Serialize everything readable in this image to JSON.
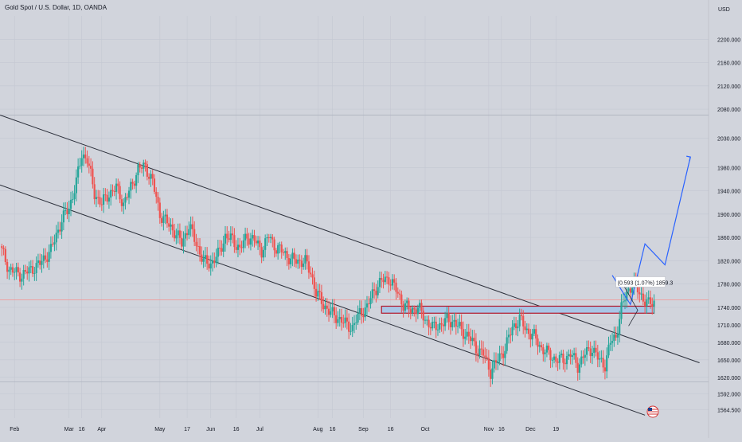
{
  "header": {
    "title": "Gold Spot / U.S. Dollar, 1D, OANDA"
  },
  "colors": {
    "background": "#d1d4dc",
    "up": "#26a69a",
    "down": "#ef5350",
    "channel": "#2a2e39",
    "projection": "#2962ff",
    "zone_fill": "#a9c6e6",
    "zone_border": "#b2182b",
    "level_line": "#ef9a9a"
  },
  "chart_data": {
    "type": "candlestick",
    "title": "Gold Spot / U.S. Dollar, 1D, OANDA",
    "currency": "USD",
    "ylim": [
      1550,
      2240
    ],
    "y_ticks": [
      "2200.000",
      "2160.000",
      "2120.000",
      "2080.000",
      "2030.000",
      "1980.000",
      "1940.000",
      "1900.000",
      "1860.000",
      "1820.000",
      "1780.000",
      "1740.000",
      "1710.000",
      "1680.000",
      "1650.000",
      "1620.000",
      "1592.000",
      "1564.500"
    ],
    "x_ticks": [
      "Feb",
      "Mar",
      "16",
      "Apr",
      "May",
      "17",
      "Jun",
      "16",
      "Jul",
      "Aug",
      "16",
      "Sep",
      "16",
      "Oct",
      "Nov",
      "16",
      "Dec",
      "19"
    ],
    "horizontal_levels": [
      2070,
      1753,
      1612
    ],
    "close_path": [
      [
        0,
        1845
      ],
      [
        5,
        1805
      ],
      [
        12,
        1795
      ],
      [
        22,
        1815
      ],
      [
        28,
        1838
      ],
      [
        34,
        1890
      ],
      [
        38,
        1910
      ],
      [
        42,
        1955
      ],
      [
        45,
        2002
      ],
      [
        48,
        1995
      ],
      [
        52,
        1935
      ],
      [
        56,
        1918
      ],
      [
        60,
        1935
      ],
      [
        64,
        1945
      ],
      [
        68,
        1918
      ],
      [
        72,
        1945
      ],
      [
        76,
        1978
      ],
      [
        80,
        1982
      ],
      [
        84,
        1955
      ],
      [
        88,
        1900
      ],
      [
        92,
        1885
      ],
      [
        96,
        1870
      ],
      [
        100,
        1850
      ],
      [
        104,
        1880
      ],
      [
        108,
        1850
      ],
      [
        112,
        1818
      ],
      [
        116,
        1815
      ],
      [
        120,
        1830
      ],
      [
        124,
        1862
      ],
      [
        128,
        1856
      ],
      [
        132,
        1840
      ],
      [
        136,
        1862
      ],
      [
        140,
        1855
      ],
      [
        144,
        1838
      ],
      [
        148,
        1862
      ],
      [
        152,
        1842
      ],
      [
        156,
        1835
      ],
      [
        160,
        1822
      ],
      [
        164,
        1820
      ],
      [
        168,
        1818
      ],
      [
        171,
        1800
      ],
      [
        174,
        1765
      ],
      [
        178,
        1745
      ],
      [
        182,
        1730
      ],
      [
        186,
        1722
      ],
      [
        190,
        1712
      ],
      [
        194,
        1705
      ],
      [
        198,
        1730
      ],
      [
        202,
        1740
      ],
      [
        206,
        1770
      ],
      [
        210,
        1785
      ],
      [
        214,
        1790
      ],
      [
        218,
        1770
      ],
      [
        222,
        1745
      ],
      [
        226,
        1735
      ],
      [
        230,
        1740
      ],
      [
        234,
        1720
      ],
      [
        238,
        1705
      ],
      [
        242,
        1710
      ],
      [
        246,
        1718
      ],
      [
        250,
        1715
      ],
      [
        254,
        1700
      ],
      [
        258,
        1690
      ],
      [
        262,
        1670
      ],
      [
        266,
        1660
      ],
      [
        270,
        1630
      ],
      [
        274,
        1650
      ],
      [
        278,
        1670
      ],
      [
        282,
        1705
      ],
      [
        286,
        1720
      ],
      [
        290,
        1700
      ],
      [
        294,
        1690
      ],
      [
        298,
        1670
      ],
      [
        302,
        1660
      ],
      [
        306,
        1650
      ],
      [
        310,
        1650
      ],
      [
        314,
        1660
      ],
      [
        318,
        1640
      ],
      [
        322,
        1660
      ],
      [
        326,
        1670
      ],
      [
        330,
        1648
      ],
      [
        333,
        1642
      ],
      [
        336,
        1680
      ],
      [
        339,
        1690
      ],
      [
        342,
        1738
      ],
      [
        345,
        1765
      ],
      [
        348,
        1780
      ],
      [
        351,
        1770
      ],
      [
        354,
        1755
      ],
      [
        357,
        1745
      ],
      [
        360,
        1750
      ]
    ],
    "annotation": {
      "label": "(0.593 (1.07%) 1859.3",
      "price": 1783
    },
    "channel_upper": [
      [
        0,
        2070
      ],
      [
        385,
        1645
      ]
    ],
    "channel_lower": [
      [
        0,
        1950
      ],
      [
        355,
        1555
      ]
    ],
    "resistance_zone": [
      1730,
      1742
    ],
    "projection_path": [
      [
        337,
        1795
      ],
      [
        347,
        1745
      ],
      [
        355,
        1849
      ],
      [
        366,
        1813
      ],
      [
        380,
        1998
      ]
    ]
  }
}
